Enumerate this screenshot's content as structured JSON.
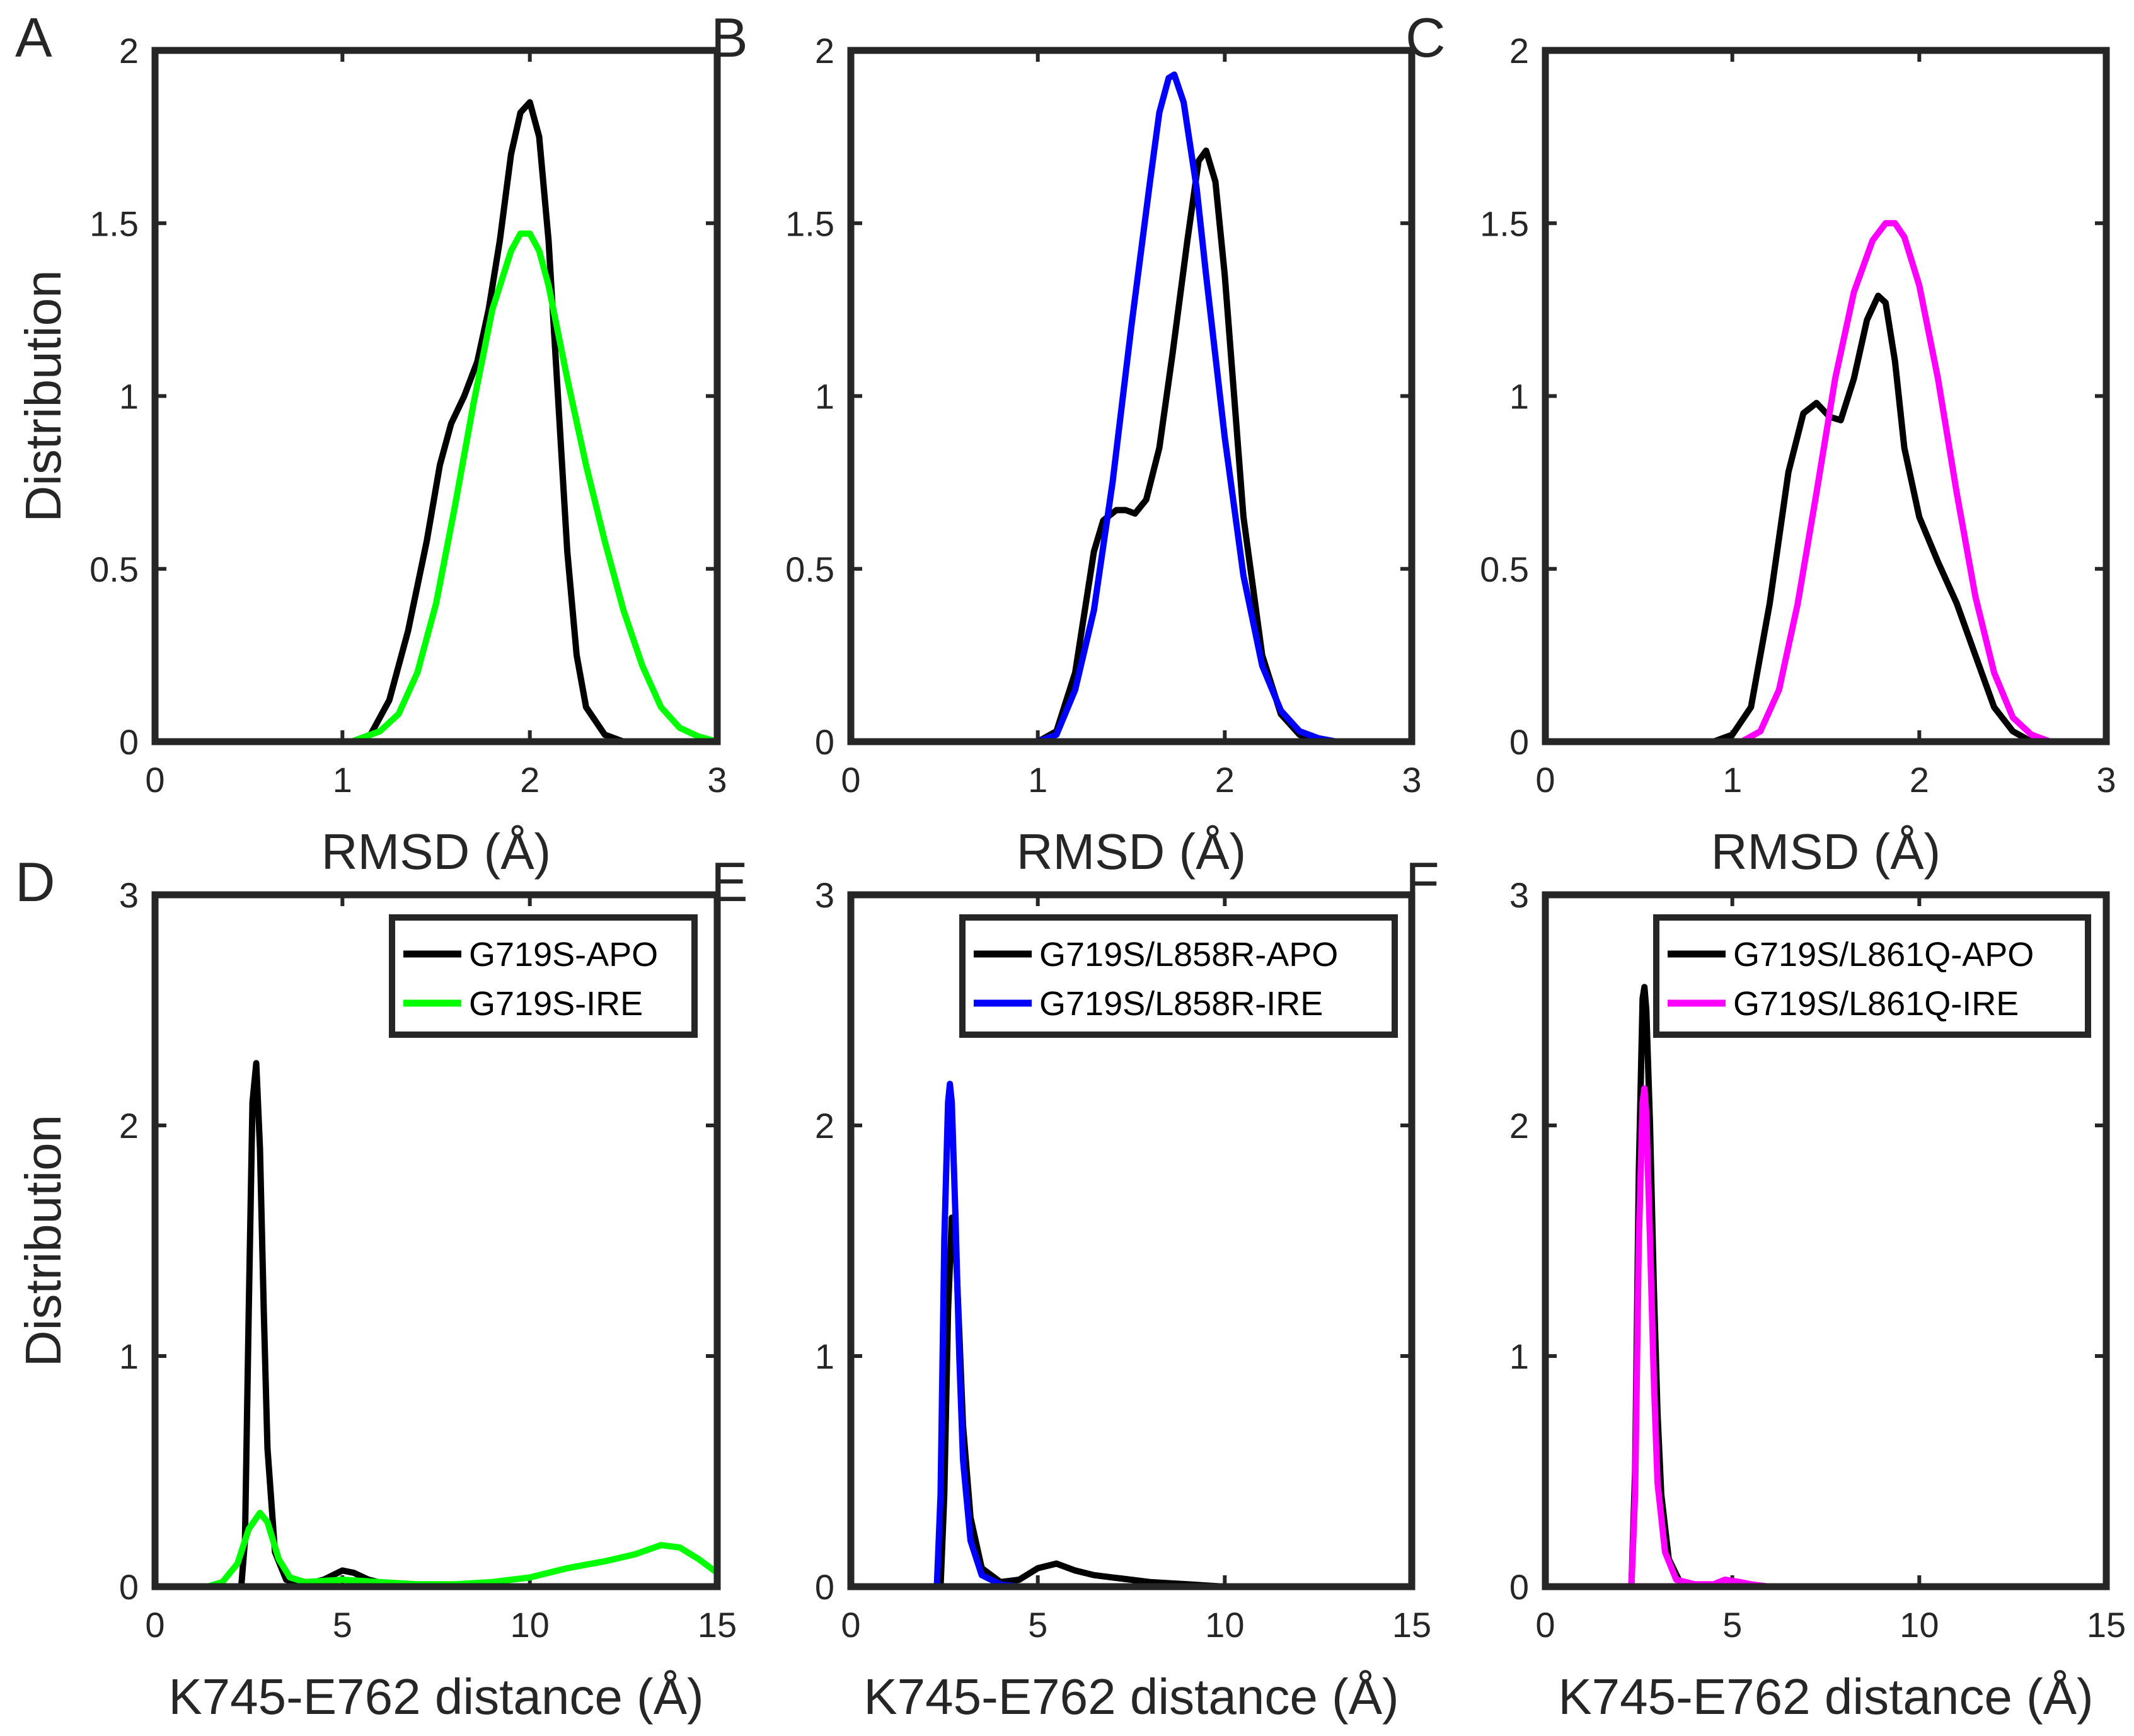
{
  "colors": {
    "apo": "#000000",
    "g719s_ire": "#00ff00",
    "l858r_ire": "#0000ff",
    "l861q_ire": "#ff00ff",
    "axis": "#262626"
  },
  "chart_data": [
    {
      "id": "A",
      "label": "A",
      "type": "line",
      "xlabel": "RMSD (Å)",
      "ylabel": "Distribution",
      "xlim": [
        0,
        3
      ],
      "ylim": [
        0,
        2
      ],
      "xticks": [
        "0",
        "1",
        "2",
        "3"
      ],
      "yticks": [
        "0",
        "0.5",
        "1",
        "1.5",
        "2"
      ],
      "legend": null,
      "series": [
        {
          "name": "G719S-APO",
          "color": "#000000",
          "x": [
            1.05,
            1.15,
            1.25,
            1.35,
            1.45,
            1.52,
            1.58,
            1.65,
            1.72,
            1.78,
            1.84,
            1.9,
            1.95,
            2.0,
            2.05,
            2.1,
            2.15,
            2.2,
            2.25,
            2.3,
            2.4,
            2.5,
            2.6,
            2.7
          ],
          "y": [
            0,
            0.02,
            0.12,
            0.32,
            0.58,
            0.8,
            0.92,
            1.0,
            1.1,
            1.25,
            1.45,
            1.7,
            1.82,
            1.85,
            1.75,
            1.45,
            1.0,
            0.55,
            0.25,
            0.1,
            0.02,
            0,
            0,
            0
          ]
        },
        {
          "name": "G719S-IRE",
          "color": "#00ff00",
          "x": [
            1.05,
            1.2,
            1.3,
            1.4,
            1.5,
            1.6,
            1.7,
            1.8,
            1.9,
            1.95,
            2.0,
            2.05,
            2.1,
            2.2,
            2.3,
            2.4,
            2.5,
            2.6,
            2.7,
            2.8,
            2.9,
            3.0
          ],
          "y": [
            0,
            0.03,
            0.08,
            0.2,
            0.4,
            0.68,
            0.98,
            1.25,
            1.42,
            1.47,
            1.47,
            1.42,
            1.32,
            1.05,
            0.8,
            0.58,
            0.38,
            0.22,
            0.1,
            0.04,
            0.015,
            0
          ]
        }
      ]
    },
    {
      "id": "B",
      "label": "B",
      "type": "line",
      "xlabel": "RMSD (Å)",
      "ylabel": "",
      "xlim": [
        0,
        3
      ],
      "ylim": [
        0,
        2
      ],
      "xticks": [
        "0",
        "1",
        "2",
        "3"
      ],
      "yticks": [
        "0",
        "0.5",
        "1",
        "1.5",
        "2"
      ],
      "legend": null,
      "series": [
        {
          "name": "G719S/L858R-APO",
          "color": "#000000",
          "x": [
            1.0,
            1.1,
            1.2,
            1.3,
            1.35,
            1.42,
            1.47,
            1.52,
            1.58,
            1.65,
            1.72,
            1.8,
            1.86,
            1.9,
            1.95,
            2.0,
            2.05,
            2.1,
            2.2,
            2.3,
            2.4,
            2.5,
            2.6
          ],
          "y": [
            0,
            0.03,
            0.2,
            0.55,
            0.64,
            0.67,
            0.67,
            0.66,
            0.7,
            0.85,
            1.12,
            1.45,
            1.68,
            1.71,
            1.62,
            1.35,
            1.0,
            0.65,
            0.25,
            0.08,
            0.02,
            0,
            0
          ]
        },
        {
          "name": "G719S/L858R-IRE",
          "color": "#0000ff",
          "x": [
            1.0,
            1.1,
            1.2,
            1.3,
            1.4,
            1.5,
            1.6,
            1.65,
            1.7,
            1.73,
            1.78,
            1.85,
            1.9,
            2.0,
            2.1,
            2.2,
            2.3,
            2.4,
            2.5,
            2.6,
            2.7,
            2.9
          ],
          "y": [
            0,
            0.02,
            0.15,
            0.38,
            0.75,
            1.2,
            1.62,
            1.82,
            1.92,
            1.93,
            1.85,
            1.6,
            1.35,
            0.88,
            0.48,
            0.22,
            0.09,
            0.03,
            0.01,
            0,
            0,
            0
          ]
        }
      ]
    },
    {
      "id": "C",
      "label": "C",
      "type": "line",
      "xlabel": "RMSD (Å)",
      "ylabel": "",
      "xlim": [
        0,
        3
      ],
      "ylim": [
        0,
        2
      ],
      "xticks": [
        "0",
        "1",
        "2",
        "3"
      ],
      "yticks": [
        "0",
        "0.5",
        "1",
        "1.5",
        "2"
      ],
      "legend": null,
      "series": [
        {
          "name": "G719S/L861Q-APO",
          "color": "#000000",
          "x": [
            0.9,
            1.0,
            1.1,
            1.2,
            1.3,
            1.38,
            1.45,
            1.52,
            1.58,
            1.65,
            1.72,
            1.78,
            1.82,
            1.87,
            1.92,
            2.0,
            2.1,
            2.2,
            2.3,
            2.4,
            2.5,
            2.6,
            2.7
          ],
          "y": [
            0,
            0.02,
            0.1,
            0.4,
            0.78,
            0.95,
            0.98,
            0.94,
            0.93,
            1.05,
            1.22,
            1.29,
            1.27,
            1.1,
            0.85,
            0.65,
            0.52,
            0.4,
            0.25,
            0.1,
            0.03,
            0,
            0
          ]
        },
        {
          "name": "G719S/L861Q-IRE",
          "color": "#ff00ff",
          "x": [
            1.05,
            1.15,
            1.25,
            1.35,
            1.45,
            1.55,
            1.65,
            1.75,
            1.82,
            1.87,
            1.92,
            2.0,
            2.1,
            2.2,
            2.3,
            2.4,
            2.5,
            2.6,
            2.7,
            2.8,
            3.0
          ],
          "y": [
            0,
            0.03,
            0.15,
            0.4,
            0.72,
            1.05,
            1.3,
            1.45,
            1.5,
            1.5,
            1.46,
            1.32,
            1.05,
            0.72,
            0.42,
            0.2,
            0.07,
            0.02,
            0,
            0,
            0
          ]
        }
      ]
    },
    {
      "id": "D",
      "label": "D",
      "type": "line",
      "xlabel": "K745-E762 distance (Å)",
      "ylabel": "Distribution",
      "xlim": [
        0,
        15
      ],
      "ylim": [
        0,
        3
      ],
      "xticks": [
        "0",
        "5",
        "10",
        "15"
      ],
      "yticks": [
        "0",
        "1",
        "2",
        "3"
      ],
      "legend": {
        "position": "top-right",
        "entries": [
          "G719S-APO",
          "G719S-IRE"
        ]
      },
      "series": [
        {
          "name": "G719S-APO",
          "color": "#000000",
          "x": [
            2.3,
            2.4,
            2.5,
            2.6,
            2.7,
            2.8,
            2.9,
            3.0,
            3.2,
            3.5,
            4.0,
            4.5,
            5.0,
            5.3,
            5.7,
            6.2,
            7.0,
            8.0,
            9.0,
            10.0
          ],
          "y": [
            0,
            0.2,
            1.2,
            2.1,
            2.27,
            1.9,
            1.2,
            0.6,
            0.15,
            0.03,
            0.01,
            0.03,
            0.07,
            0.06,
            0.03,
            0.01,
            0,
            0,
            0,
            0
          ]
        },
        {
          "name": "G719S-IRE",
          "color": "#00ff00",
          "x": [
            1.4,
            1.8,
            2.2,
            2.5,
            2.8,
            3.0,
            3.3,
            3.6,
            4.0,
            5.0,
            6.0,
            7.0,
            8.0,
            9.0,
            10.0,
            11.0,
            12.0,
            12.8,
            13.5,
            14.0,
            14.5,
            15.0
          ],
          "y": [
            0,
            0.02,
            0.1,
            0.25,
            0.32,
            0.28,
            0.12,
            0.04,
            0.02,
            0.03,
            0.02,
            0.01,
            0.01,
            0.02,
            0.04,
            0.08,
            0.11,
            0.14,
            0.18,
            0.17,
            0.12,
            0.06
          ]
        }
      ]
    },
    {
      "id": "E",
      "label": "E",
      "type": "line",
      "xlabel": "K745-E762 distance (Å)",
      "ylabel": "",
      "xlim": [
        0,
        15
      ],
      "ylim": [
        0,
        3
      ],
      "xticks": [
        "0",
        "5",
        "10",
        "15"
      ],
      "yticks": [
        "0",
        "1",
        "2",
        "3"
      ],
      "legend": {
        "position": "top-right",
        "entries": [
          "G719S/L858R-APO",
          "G719S/L858R-IRE"
        ]
      },
      "series": [
        {
          "name": "G719S/L858R-APO",
          "color": "#000000",
          "x": [
            2.4,
            2.5,
            2.6,
            2.7,
            2.8,
            2.9,
            3.0,
            3.2,
            3.5,
            4.0,
            4.5,
            5.0,
            5.5,
            6.0,
            6.5,
            7.0,
            8.0,
            9.0,
            10.0,
            11.0,
            12.0,
            12.8
          ],
          "y": [
            0,
            0.4,
            1.2,
            1.6,
            1.5,
            1.1,
            0.7,
            0.3,
            0.08,
            0.02,
            0.03,
            0.08,
            0.1,
            0.07,
            0.05,
            0.04,
            0.02,
            0.01,
            0,
            0,
            0,
            0
          ]
        },
        {
          "name": "G719S/L858R-IRE",
          "color": "#0000ff",
          "x": [
            2.3,
            2.4,
            2.5,
            2.6,
            2.65,
            2.7,
            2.8,
            2.9,
            3.0,
            3.2,
            3.5,
            4.0,
            4.5,
            5.0,
            6.0,
            7.0
          ],
          "y": [
            0,
            0.4,
            1.5,
            2.1,
            2.18,
            2.1,
            1.6,
            1.0,
            0.55,
            0.2,
            0.05,
            0.01,
            0,
            0,
            0,
            0
          ]
        }
      ]
    },
    {
      "id": "F",
      "label": "F",
      "type": "line",
      "xlabel": "K745-E762 distance (Å)",
      "ylabel": "",
      "xlim": [
        0,
        15
      ],
      "ylim": [
        0,
        3
      ],
      "xticks": [
        "0",
        "5",
        "10",
        "15"
      ],
      "yticks": [
        "0",
        "1",
        "2",
        "3"
      ],
      "legend": {
        "position": "top-right",
        "entries": [
          "G719S/L861Q-APO",
          "G719S/L861Q-IRE"
        ]
      },
      "series": [
        {
          "name": "G719S/L861Q-APO",
          "color": "#000000",
          "x": [
            2.3,
            2.4,
            2.5,
            2.6,
            2.65,
            2.7,
            2.8,
            2.9,
            3.0,
            3.1,
            3.3,
            3.6,
            4.0,
            4.5,
            5.0,
            6.0
          ],
          "y": [
            0,
            0.5,
            1.8,
            2.55,
            2.6,
            2.5,
            2.0,
            1.3,
            0.75,
            0.4,
            0.12,
            0.02,
            0,
            0,
            0,
            0
          ]
        },
        {
          "name": "G719S/L861Q-IRE",
          "color": "#ff00ff",
          "x": [
            2.3,
            2.4,
            2.5,
            2.6,
            2.65,
            2.7,
            2.8,
            2.9,
            3.0,
            3.2,
            3.5,
            4.0,
            4.5,
            4.8,
            5.2,
            5.5,
            6.0,
            7.0
          ],
          "y": [
            0,
            0.4,
            1.5,
            2.1,
            2.16,
            2.05,
            1.5,
            0.9,
            0.45,
            0.15,
            0.03,
            0.01,
            0.01,
            0.03,
            0.02,
            0.01,
            0,
            0
          ]
        }
      ]
    }
  ]
}
